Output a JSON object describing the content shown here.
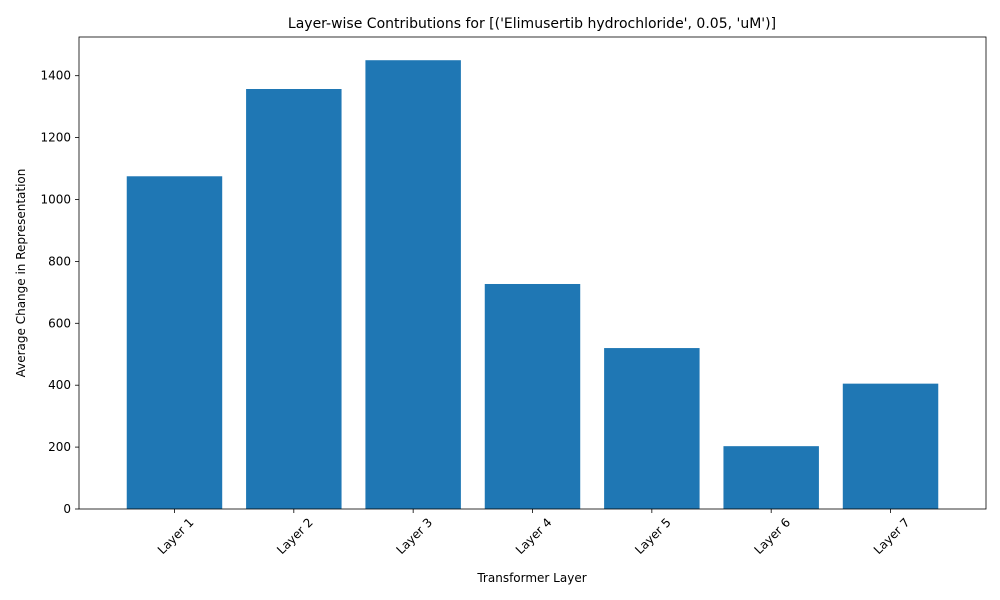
{
  "chart_data": {
    "type": "bar",
    "title": "Layer-wise Contributions for [('Elimusertib hydrochloride', 0.05, 'uM')]",
    "xlabel": "Transformer Layer",
    "ylabel": "Average Change in Representation",
    "categories": [
      "Layer 1",
      "Layer 2",
      "Layer 3",
      "Layer 4",
      "Layer 5",
      "Layer 6",
      "Layer 7"
    ],
    "values": [
      1075,
      1357,
      1450,
      727,
      520,
      203,
      405
    ],
    "ylim": [
      0,
      1525
    ],
    "yticks": [
      0,
      200,
      400,
      600,
      800,
      1000,
      1200,
      1400
    ],
    "bar_color": "#1f77b4",
    "grid": false,
    "legend": "none"
  }
}
